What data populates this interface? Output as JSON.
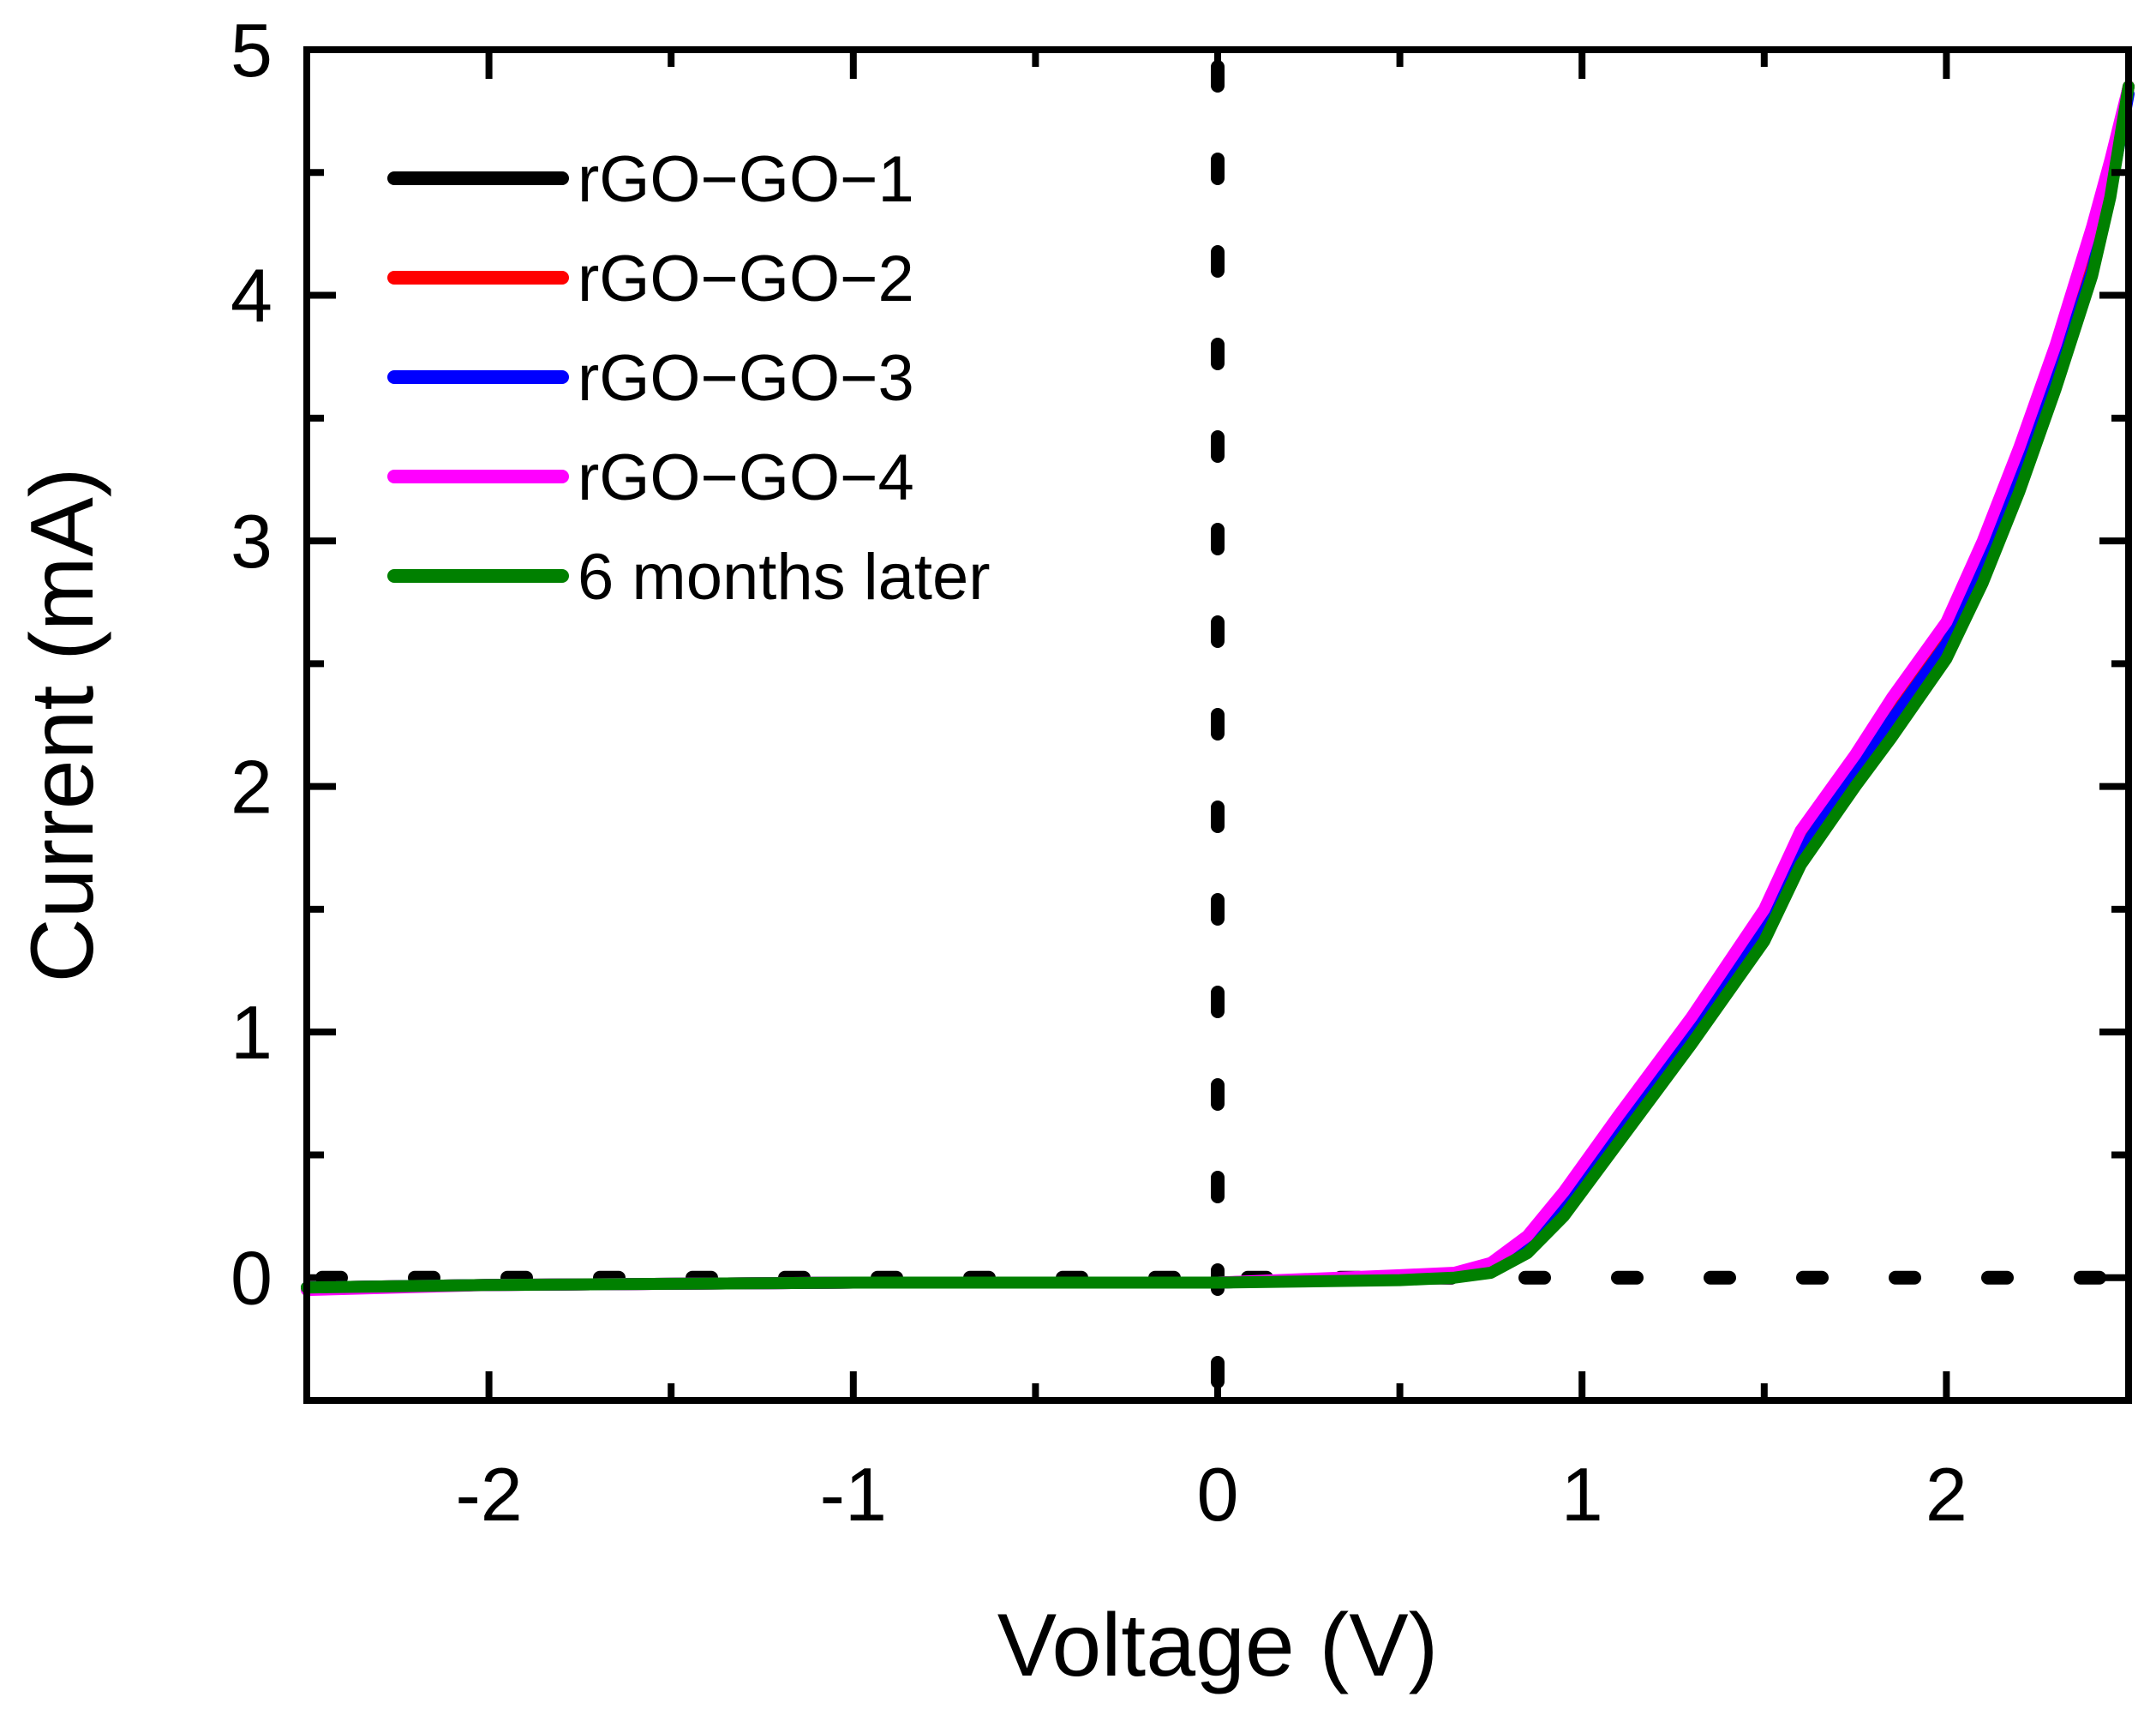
{
  "chart_data": {
    "type": "line",
    "title": "",
    "xlabel": "Voltage (V)",
    "ylabel": "Current (mA)",
    "xlim": [
      -2.5,
      2.5
    ],
    "ylim": [
      -0.5,
      5
    ],
    "xticks": [
      -2,
      -1,
      0,
      1,
      2
    ],
    "xtick_labels": [
      "-2",
      "-1",
      "0",
      "1",
      "2"
    ],
    "yticks": [
      0,
      1,
      2,
      3,
      4,
      5
    ],
    "ytick_labels": [
      "0",
      "1",
      "2",
      "3",
      "4",
      "5"
    ],
    "legend_position": "top-left",
    "reference_lines": [
      {
        "orientation": "vertical",
        "value": 0,
        "style": "dotted"
      },
      {
        "orientation": "horizontal",
        "value": 0,
        "style": "dotted"
      }
    ],
    "x": [
      -2.5,
      -2.0,
      -1.0,
      0.0,
      0.5,
      0.65,
      0.75,
      0.85,
      0.95,
      1.1,
      1.3,
      1.5,
      1.6,
      1.75,
      1.85,
      2.0,
      2.1,
      2.2,
      2.3,
      2.4,
      2.45,
      2.5
    ],
    "series": [
      {
        "name": "rGO−GO−1",
        "color": "#000000",
        "values": [
          -0.04,
          -0.03,
          -0.02,
          -0.02,
          0.0,
          0.01,
          0.05,
          0.16,
          0.33,
          0.63,
          1.03,
          1.47,
          1.78,
          2.1,
          2.32,
          2.63,
          2.95,
          3.32,
          3.72,
          4.2,
          4.5,
          4.85
        ]
      },
      {
        "name": "rGO−GO−2",
        "color": "#ff0000",
        "values": [
          -0.04,
          -0.03,
          -0.02,
          -0.02,
          0.0,
          0.01,
          0.05,
          0.16,
          0.33,
          0.63,
          1.03,
          1.47,
          1.78,
          2.1,
          2.32,
          2.63,
          2.95,
          3.32,
          3.72,
          4.2,
          4.5,
          4.85
        ]
      },
      {
        "name": "rGO−GO−3",
        "color": "#0000ff",
        "values": [
          -0.04,
          -0.03,
          -0.02,
          -0.02,
          0.0,
          0.01,
          0.04,
          0.14,
          0.3,
          0.6,
          0.99,
          1.42,
          1.73,
          2.06,
          2.27,
          2.58,
          2.89,
          3.25,
          3.66,
          4.1,
          4.42,
          4.82
        ]
      },
      {
        "name": "rGO−GO−4",
        "color": "#ff00ff",
        "values": [
          -0.05,
          -0.03,
          -0.02,
          -0.02,
          0.01,
          0.02,
          0.06,
          0.17,
          0.35,
          0.66,
          1.06,
          1.5,
          1.82,
          2.13,
          2.36,
          2.67,
          3.0,
          3.38,
          3.8,
          4.28,
          4.55,
          4.85
        ]
      },
      {
        "name": "6 months later",
        "color": "#008000",
        "values": [
          -0.04,
          -0.03,
          -0.02,
          -0.02,
          -0.01,
          0.0,
          0.02,
          0.1,
          0.25,
          0.55,
          0.95,
          1.37,
          1.68,
          2.0,
          2.2,
          2.52,
          2.83,
          3.2,
          3.62,
          4.08,
          4.4,
          4.85
        ]
      }
    ]
  }
}
